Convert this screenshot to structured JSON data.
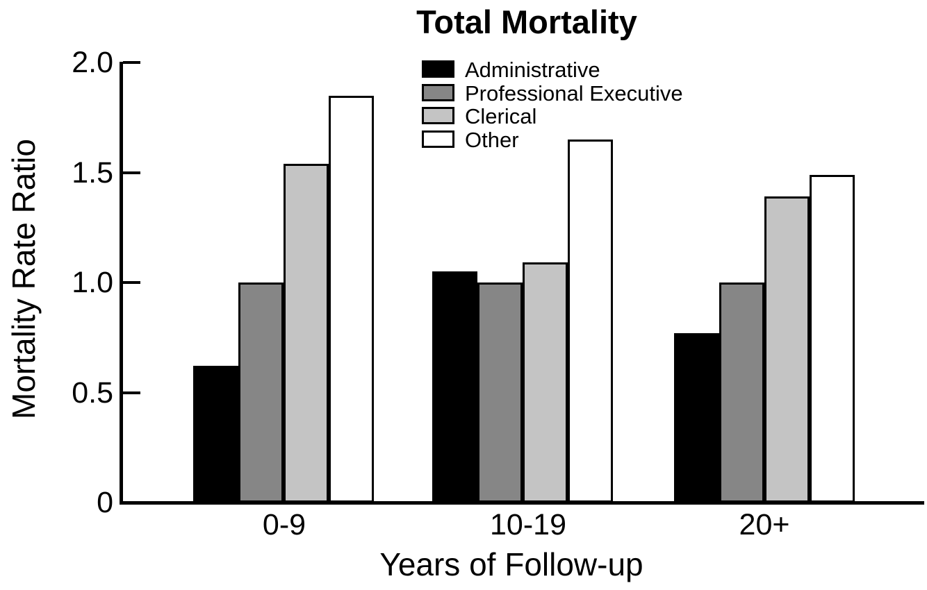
{
  "title": "Total Mortality",
  "y_axis": {
    "label": "Mortality Rate Ratio",
    "tick_labels": [
      "2.0",
      "1.5",
      "1.0",
      "0.5",
      "0"
    ],
    "tick_values": [
      2.0,
      1.5,
      1.0,
      0.5,
      0
    ]
  },
  "x_axis": {
    "label": "Years of Follow-up",
    "categories": [
      "0-9",
      "10-19",
      "20+"
    ]
  },
  "legend": {
    "entries": [
      {
        "label": "Administrative",
        "color": "#000000"
      },
      {
        "label": "Professional Executive",
        "color": "#868686"
      },
      {
        "label": "Clerical",
        "color": "#c4c4c4"
      },
      {
        "label": "Other",
        "color": "#ffffff"
      }
    ]
  },
  "chart_data": {
    "type": "bar",
    "title": "Total Mortality",
    "xlabel": "Years of Follow-up",
    "ylabel": "Mortality Rate Ratio",
    "categories": [
      "0-9",
      "10-19",
      "20+"
    ],
    "ylim": [
      0,
      2.0
    ],
    "yticks": [
      0,
      0.5,
      1.0,
      1.5,
      2.0
    ],
    "grid": false,
    "legend_position": "top-center",
    "bar_outline_color": "#000000",
    "series": [
      {
        "name": "Administrative",
        "color": "#000000",
        "values": [
          0.62,
          1.05,
          0.77
        ]
      },
      {
        "name": "Professional Executive",
        "color": "#868686",
        "values": [
          1.0,
          1.0,
          1.0
        ]
      },
      {
        "name": "Clerical",
        "color": "#c4c4c4",
        "values": [
          1.54,
          1.09,
          1.39
        ]
      },
      {
        "name": "Other",
        "color": "#ffffff",
        "values": [
          1.85,
          1.65,
          1.49
        ]
      }
    ]
  }
}
